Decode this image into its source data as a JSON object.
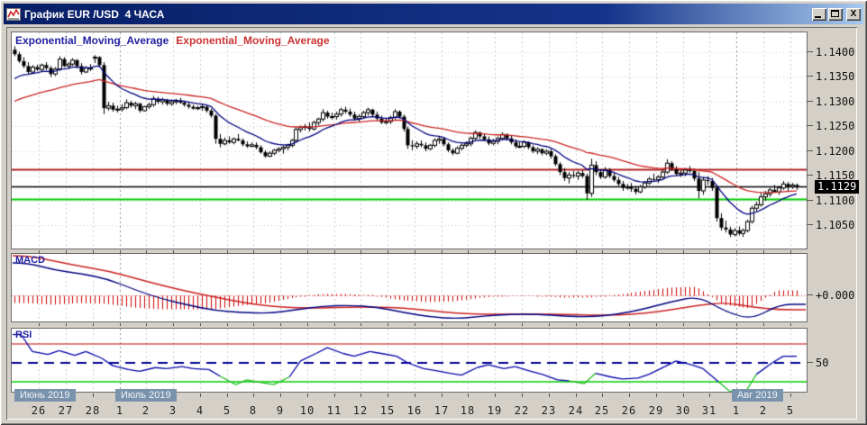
{
  "window": {
    "title": "График EUR /USD  4 ЧАСА",
    "controls": {
      "minimize": "minimize",
      "maximize": "maximize",
      "close": "close"
    }
  },
  "legend": {
    "ema_fast_label": "Exponential_Moving_Average",
    "ema_slow_label": "Exponential_Moving_Average"
  },
  "panels": {
    "macd_label": "MACD",
    "rsi_label": "RSI",
    "macd_zero_label": "+0.000",
    "rsi_mid_label": "50"
  },
  "price_axis": {
    "labels": [
      "1.1400",
      "1.1350",
      "1.1300",
      "1.1250",
      "1.1200",
      "1.1150",
      "1.1100",
      "1.1050"
    ],
    "current": "1.1129"
  },
  "time_axis": {
    "day_labels": [
      "26",
      "27",
      "28",
      "1",
      "2",
      "3",
      "4",
      "5",
      "8",
      "9",
      "10",
      "11",
      "12",
      "15",
      "16",
      "17",
      "18",
      "19",
      "22",
      "23",
      "24",
      "25",
      "26",
      "29",
      "30",
      "31",
      "1",
      "2",
      "5"
    ],
    "months": [
      {
        "label": "Июнь 2019",
        "start_day_index": 0
      },
      {
        "label": "Июль 2019",
        "start_day_index": 3
      },
      {
        "label": "Авг 2019",
        "start_day_index": 26
      }
    ]
  },
  "colors": {
    "titlebar": "#081f66",
    "window_bg": "#d4d0c8",
    "panel_bg": "#ffffff",
    "grid": "#cbcbcb",
    "grid_month": "#8f8f8f",
    "candle": "#000000",
    "ema_fast": "#000080",
    "ema_slow": "#cc2222",
    "line_resistance": "#b22222",
    "line_current": "#000000",
    "line_support": "#00cc00",
    "macd_line": "#000080",
    "macd_signal": "#cc2222",
    "macd_hist": "#cc0000",
    "macd_zero": "#cc4444",
    "rsi_line": "#0000aa",
    "rsi_under": "#22bb22",
    "rsi_level_hi": "#cc0000",
    "rsi_level_lo": "#00cc00",
    "rsi_level_mid": "#000090",
    "month_box": "#7a93ad"
  },
  "chart_data": {
    "type": "candlestick",
    "symbol": "EUR/USD",
    "timeframe": "4H",
    "indicators": [
      "Exponential_Moving_Average",
      "Exponential_Moving_Average",
      "MACD",
      "RSI"
    ],
    "candles_per_day": 6,
    "price_scale": {
      "max": 1.14,
      "min": 1.105,
      "step": 0.005
    },
    "hlines": {
      "resistance": 1.1163,
      "current": 1.1129,
      "support": 1.1103
    },
    "ema": {
      "fast": {
        "period": 13,
        "seed": 1.1338
      },
      "slow": {
        "period": 40,
        "seed": 1.1296
      }
    },
    "candles": [
      [
        1.1405,
        1.1412,
        1.1392,
        1.1396
      ],
      [
        1.1396,
        1.1401,
        1.1378,
        1.1382
      ],
      [
        1.1382,
        1.139,
        1.1368,
        1.1372
      ],
      [
        1.1372,
        1.138,
        1.1355,
        1.136
      ],
      [
        1.136,
        1.1374,
        1.1356,
        1.137
      ],
      [
        1.137,
        1.1375,
        1.1362,
        1.1365
      ],
      [
        1.1365,
        1.1377,
        1.136,
        1.1374
      ],
      [
        1.1374,
        1.138,
        1.1364,
        1.1368
      ],
      [
        1.1368,
        1.1372,
        1.135,
        1.1356
      ],
      [
        1.1356,
        1.137,
        1.1352,
        1.1366
      ],
      [
        1.1366,
        1.1392,
        1.1362,
        1.1386
      ],
      [
        1.1386,
        1.139,
        1.137,
        1.1372
      ],
      [
        1.1372,
        1.138,
        1.1366,
        1.1376
      ],
      [
        1.1376,
        1.1388,
        1.1372,
        1.1384
      ],
      [
        1.1384,
        1.1386,
        1.1368,
        1.1372
      ],
      [
        1.1372,
        1.1378,
        1.1355,
        1.136
      ],
      [
        1.136,
        1.1372,
        1.1358,
        1.1368
      ],
      [
        1.1368,
        1.1376,
        1.1362,
        1.1368
      ],
      [
        1.1388,
        1.1394,
        1.1378,
        1.139
      ],
      [
        1.139,
        1.1392,
        1.137,
        1.1374
      ],
      [
        1.1374,
        1.138,
        1.1275,
        1.1287
      ],
      [
        1.1287,
        1.13,
        1.1282,
        1.1292
      ],
      [
        1.1292,
        1.1298,
        1.128,
        1.1284
      ],
      [
        1.1284,
        1.1292,
        1.1278,
        1.1285
      ],
      [
        1.1285,
        1.1295,
        1.128,
        1.1288
      ],
      [
        1.1288,
        1.1305,
        1.1285,
        1.1298
      ],
      [
        1.1298,
        1.1302,
        1.1288,
        1.1292
      ],
      [
        1.1292,
        1.13,
        1.1285,
        1.1296
      ],
      [
        1.1296,
        1.1298,
        1.1278,
        1.1282
      ],
      [
        1.1282,
        1.1292,
        1.128,
        1.129
      ],
      [
        1.129,
        1.1298,
        1.1285,
        1.1294
      ],
      [
        1.1294,
        1.1312,
        1.129,
        1.1306
      ],
      [
        1.1306,
        1.131,
        1.1296,
        1.13
      ],
      [
        1.13,
        1.1308,
        1.1294,
        1.1304
      ],
      [
        1.1304,
        1.1306,
        1.1292,
        1.1296
      ],
      [
        1.1296,
        1.1304,
        1.1292,
        1.13
      ],
      [
        1.13,
        1.1306,
        1.1295,
        1.1302
      ],
      [
        1.1302,
        1.1308,
        1.1296,
        1.1298
      ],
      [
        1.1298,
        1.1302,
        1.129,
        1.1294
      ],
      [
        1.1294,
        1.1298,
        1.1286,
        1.129
      ],
      [
        1.129,
        1.1294,
        1.1284,
        1.1286
      ],
      [
        1.1286,
        1.1292,
        1.1283,
        1.1288
      ],
      [
        1.1288,
        1.1295,
        1.1282,
        1.129
      ],
      [
        1.129,
        1.1292,
        1.1278,
        1.1282
      ],
      [
        1.1282,
        1.1286,
        1.1268,
        1.1272
      ],
      [
        1.1272,
        1.1275,
        1.1215,
        1.1225
      ],
      [
        1.1225,
        1.1235,
        1.1208,
        1.1215
      ],
      [
        1.1215,
        1.1228,
        1.1212,
        1.1222
      ],
      [
        1.1222,
        1.123,
        1.1215,
        1.1218
      ],
      [
        1.1218,
        1.1228,
        1.1214,
        1.1225
      ],
      [
        1.1225,
        1.1235,
        1.122,
        1.1222
      ],
      [
        1.1222,
        1.1226,
        1.121,
        1.1214
      ],
      [
        1.1214,
        1.122,
        1.1207,
        1.121
      ],
      [
        1.121,
        1.1218,
        1.1208,
        1.1213
      ],
      [
        1.1213,
        1.1218,
        1.1204,
        1.1208
      ],
      [
        1.1208,
        1.1212,
        1.1195,
        1.1198
      ],
      [
        1.1198,
        1.1202,
        1.1187,
        1.119
      ],
      [
        1.119,
        1.12,
        1.1188,
        1.1196
      ],
      [
        1.1196,
        1.1205,
        1.1192,
        1.1202
      ],
      [
        1.1202,
        1.1208,
        1.1198,
        1.1205
      ],
      [
        1.1205,
        1.1212,
        1.1195,
        1.1208
      ],
      [
        1.1208,
        1.1215,
        1.1202,
        1.1212
      ],
      [
        1.1212,
        1.1225,
        1.1208,
        1.1222
      ],
      [
        1.1222,
        1.1248,
        1.1218,
        1.1244
      ],
      [
        1.1244,
        1.1252,
        1.1238,
        1.1248
      ],
      [
        1.1248,
        1.1255,
        1.1242,
        1.125
      ],
      [
        1.125,
        1.1258,
        1.124,
        1.1245
      ],
      [
        1.1245,
        1.1262,
        1.1242,
        1.1258
      ],
      [
        1.1258,
        1.1268,
        1.1252,
        1.1265
      ],
      [
        1.1265,
        1.1285,
        1.126,
        1.1278
      ],
      [
        1.1278,
        1.1282,
        1.1266,
        1.127
      ],
      [
        1.127,
        1.1278,
        1.1264,
        1.127
      ],
      [
        1.127,
        1.128,
        1.1264,
        1.1275
      ],
      [
        1.1275,
        1.1288,
        1.127,
        1.1284
      ],
      [
        1.1284,
        1.129,
        1.1276,
        1.128
      ],
      [
        1.128,
        1.1286,
        1.127,
        1.1274
      ],
      [
        1.1274,
        1.128,
        1.1262,
        1.1266
      ],
      [
        1.1266,
        1.1275,
        1.126,
        1.127
      ],
      [
        1.127,
        1.1282,
        1.1266,
        1.1278
      ],
      [
        1.1278,
        1.1288,
        1.1272,
        1.1284
      ],
      [
        1.1284,
        1.1286,
        1.127,
        1.1274
      ],
      [
        1.1274,
        1.128,
        1.1262,
        1.1266
      ],
      [
        1.1266,
        1.1272,
        1.1255,
        1.1258
      ],
      [
        1.1258,
        1.1266,
        1.1254,
        1.126
      ],
      [
        1.126,
        1.1272,
        1.1255,
        1.1268
      ],
      [
        1.1268,
        1.1285,
        1.1264,
        1.128
      ],
      [
        1.128,
        1.1283,
        1.1266,
        1.127
      ],
      [
        1.127,
        1.1274,
        1.124,
        1.1245
      ],
      [
        1.1245,
        1.125,
        1.1205,
        1.1212
      ],
      [
        1.1212,
        1.1222,
        1.1202,
        1.121
      ],
      [
        1.121,
        1.122,
        1.1205,
        1.1215
      ],
      [
        1.1215,
        1.1222,
        1.1208,
        1.1212
      ],
      [
        1.1212,
        1.1218,
        1.12,
        1.1205
      ],
      [
        1.1205,
        1.1215,
        1.1202,
        1.1212
      ],
      [
        1.1212,
        1.1226,
        1.1208,
        1.1222
      ],
      [
        1.1222,
        1.123,
        1.1215,
        1.1225
      ],
      [
        1.1225,
        1.1228,
        1.121,
        1.1214
      ],
      [
        1.1214,
        1.1218,
        1.1198,
        1.1202
      ],
      [
        1.1202,
        1.1206,
        1.1192,
        1.1196
      ],
      [
        1.1196,
        1.121,
        1.1194,
        1.1206
      ],
      [
        1.1206,
        1.1216,
        1.1202,
        1.1212
      ],
      [
        1.1212,
        1.122,
        1.1208,
        1.1215
      ],
      [
        1.1215,
        1.123,
        1.121,
        1.1226
      ],
      [
        1.1226,
        1.1242,
        1.1222,
        1.1238
      ],
      [
        1.1238,
        1.124,
        1.1225,
        1.123
      ],
      [
        1.123,
        1.1236,
        1.122,
        1.1224
      ],
      [
        1.1224,
        1.123,
        1.1212,
        1.1216
      ],
      [
        1.1216,
        1.1225,
        1.1212,
        1.122
      ],
      [
        1.122,
        1.123,
        1.1214,
        1.1226
      ],
      [
        1.1226,
        1.1238,
        1.1222,
        1.1234
      ],
      [
        1.1234,
        1.1236,
        1.1222,
        1.1226
      ],
      [
        1.1226,
        1.1232,
        1.1214,
        1.1218
      ],
      [
        1.1218,
        1.1224,
        1.1206,
        1.121
      ],
      [
        1.121,
        1.1218,
        1.1206,
        1.121
      ],
      [
        1.121,
        1.1222,
        1.1206,
        1.1218
      ],
      [
        1.1218,
        1.122,
        1.1204,
        1.1208
      ],
      [
        1.1208,
        1.1212,
        1.1196,
        1.12
      ],
      [
        1.12,
        1.1208,
        1.1194,
        1.1204
      ],
      [
        1.1204,
        1.1206,
        1.1192,
        1.1196
      ],
      [
        1.1196,
        1.1204,
        1.1192,
        1.12
      ],
      [
        1.12,
        1.1205,
        1.1185,
        1.119
      ],
      [
        1.119,
        1.1194,
        1.117,
        1.1174
      ],
      [
        1.1174,
        1.1178,
        1.1152,
        1.1158
      ],
      [
        1.1158,
        1.1166,
        1.114,
        1.1146
      ],
      [
        1.1146,
        1.1158,
        1.1135,
        1.1152
      ],
      [
        1.1152,
        1.116,
        1.1146,
        1.115
      ],
      [
        1.115,
        1.116,
        1.1142,
        1.1156
      ],
      [
        1.1156,
        1.1162,
        1.1146,
        1.115
      ],
      [
        1.115,
        1.1155,
        1.1102,
        1.1115
      ],
      [
        1.1115,
        1.1185,
        1.1108,
        1.1172
      ],
      [
        1.1172,
        1.118,
        1.1152,
        1.1158
      ],
      [
        1.1158,
        1.1164,
        1.1144,
        1.1148
      ],
      [
        1.1148,
        1.1168,
        1.1144,
        1.1162
      ],
      [
        1.1162,
        1.1166,
        1.1146,
        1.115
      ],
      [
        1.115,
        1.1156,
        1.1138,
        1.1142
      ],
      [
        1.1142,
        1.1148,
        1.113,
        1.1134
      ],
      [
        1.1134,
        1.114,
        1.112,
        1.1126
      ],
      [
        1.1126,
        1.1134,
        1.1122,
        1.1128
      ],
      [
        1.1128,
        1.1136,
        1.1118,
        1.1124
      ],
      [
        1.1124,
        1.113,
        1.1113,
        1.1118
      ],
      [
        1.1118,
        1.1132,
        1.1115,
        1.1128
      ],
      [
        1.1128,
        1.114,
        1.1124,
        1.1136
      ],
      [
        1.1136,
        1.1148,
        1.1132,
        1.1144
      ],
      [
        1.1144,
        1.1155,
        1.1138,
        1.1143
      ],
      [
        1.1143,
        1.1152,
        1.1136,
        1.1148
      ],
      [
        1.1148,
        1.1162,
        1.1144,
        1.1158
      ],
      [
        1.1158,
        1.1184,
        1.1154,
        1.1176
      ],
      [
        1.1176,
        1.118,
        1.116,
        1.1164
      ],
      [
        1.1164,
        1.117,
        1.115,
        1.1154
      ],
      [
        1.1154,
        1.1162,
        1.1148,
        1.1156
      ],
      [
        1.1156,
        1.1166,
        1.115,
        1.1162
      ],
      [
        1.1162,
        1.117,
        1.1156,
        1.116
      ],
      [
        1.116,
        1.1165,
        1.114,
        1.1145
      ],
      [
        1.1145,
        1.1158,
        1.1105,
        1.112
      ],
      [
        1.112,
        1.1148,
        1.1112,
        1.1142
      ],
      [
        1.1142,
        1.115,
        1.1132,
        1.114
      ],
      [
        1.114,
        1.1146,
        1.112,
        1.1126
      ],
      [
        1.1126,
        1.1132,
        1.1058,
        1.1065
      ],
      [
        1.1065,
        1.1075,
        1.104,
        1.1046
      ],
      [
        1.1046,
        1.106,
        1.1036,
        1.1042
      ],
      [
        1.1042,
        1.1048,
        1.1027,
        1.1032
      ],
      [
        1.1032,
        1.1045,
        1.1028,
        1.104
      ],
      [
        1.104,
        1.1048,
        1.103,
        1.1034
      ],
      [
        1.1034,
        1.1044,
        1.1027,
        1.104
      ],
      [
        1.104,
        1.1062,
        1.1036,
        1.1058
      ],
      [
        1.1058,
        1.109,
        1.1054,
        1.1085
      ],
      [
        1.1085,
        1.1098,
        1.1078,
        1.1092
      ],
      [
        1.1092,
        1.1116,
        1.1088,
        1.1108
      ],
      [
        1.1108,
        1.112,
        1.11,
        1.1114
      ],
      [
        1.1114,
        1.1126,
        1.1108,
        1.1122
      ],
      [
        1.1122,
        1.1132,
        1.1116,
        1.1118
      ],
      [
        1.1118,
        1.113,
        1.1112,
        1.1126
      ],
      [
        1.1126,
        1.114,
        1.1122,
        1.1134
      ],
      [
        1.1134,
        1.1138,
        1.112,
        1.1129
      ],
      [
        1.1129,
        1.1136,
        1.1124,
        1.1132
      ],
      [
        1.1132,
        1.1135,
        1.1122,
        1.1129
      ]
    ],
    "macd": {
      "zero_label": "+0.000",
      "per_day_macd": [
        0.0036,
        0.0028,
        0.0024,
        0.0018,
        0.0006,
        -0.0004,
        -0.0011,
        -0.0017,
        -0.0019,
        -0.002,
        -0.0016,
        -0.0012,
        -0.0011,
        -0.0013,
        -0.0019,
        -0.0024,
        -0.0026,
        -0.0023,
        -0.0021,
        -0.0021,
        -0.0023,
        -0.0024,
        -0.0021,
        -0.0015,
        -0.0007,
        -0.0001,
        -0.0018,
        -0.0027,
        -0.001
      ],
      "per_day_signal": [
        0.0044,
        0.0038,
        0.0032,
        0.0027,
        0.0019,
        0.0011,
        0.0004,
        -0.0002,
        -0.0008,
        -0.0012,
        -0.0014,
        -0.0014,
        -0.0013,
        -0.0013,
        -0.0014,
        -0.0017,
        -0.002,
        -0.0021,
        -0.0021,
        -0.0021,
        -0.0021,
        -0.0022,
        -0.0022,
        -0.002,
        -0.0016,
        -0.0011,
        -0.0008,
        -0.0013,
        -0.0016
      ]
    },
    "rsi": {
      "levels": [
        70,
        50,
        30
      ],
      "samples_per_day": 2,
      "values": [
        80,
        62,
        59,
        63,
        58,
        62,
        55,
        47,
        43,
        41,
        45,
        44,
        46,
        44,
        43,
        36,
        27,
        32,
        29,
        27,
        35,
        52,
        60,
        66,
        60,
        57,
        62,
        60,
        57,
        50,
        44,
        42,
        39,
        37,
        45,
        48,
        44,
        46,
        41,
        38,
        32,
        31,
        28,
        39,
        35,
        33,
        34,
        38,
        46,
        52,
        48,
        44,
        30,
        20,
        19,
        38,
        50,
        57
      ]
    }
  }
}
